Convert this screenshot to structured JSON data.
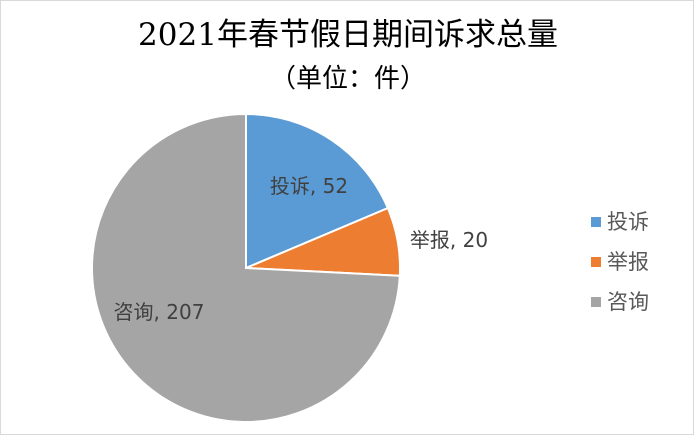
{
  "chart_data": {
    "type": "pie",
    "title": "2021年春节假日期间诉求总量",
    "subtitle": "（单位：件）",
    "slices": [
      {
        "name": "投诉",
        "value": 52,
        "color": "#5b9bd5",
        "label": "投诉, 52"
      },
      {
        "name": "举报",
        "value": 20,
        "color": "#ed7d31",
        "label": "举报, 20"
      },
      {
        "name": "咨询",
        "value": 207,
        "color": "#a5a5a5",
        "label": "咨询, 207"
      }
    ],
    "legend_position": "right"
  }
}
